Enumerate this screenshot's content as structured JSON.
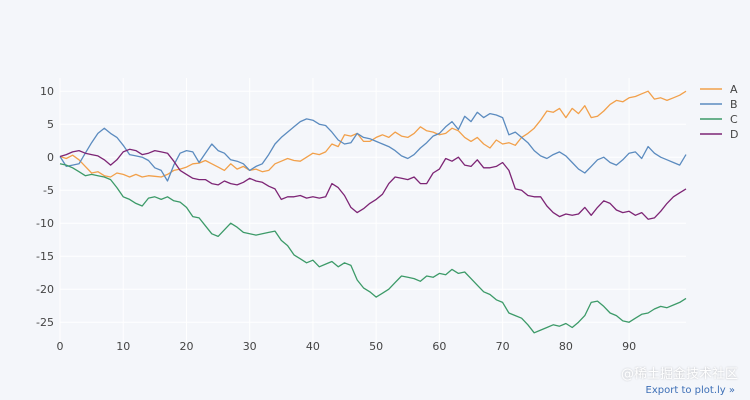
{
  "colors": {
    "background": "#f4f6fa",
    "grid": "#ffffff",
    "series": [
      "#f2a04a",
      "#5b8bbf",
      "#3c9a68",
      "#7d2575"
    ]
  },
  "export_label": "Export to plot.ly »",
  "watermark_text": "@稀土掘金技术社区",
  "chart_data": {
    "type": "line",
    "title": "",
    "xlabel": "",
    "ylabel": "",
    "xlim": [
      0,
      99
    ],
    "ylim": [
      -28,
      12
    ],
    "xticks": [
      0,
      10,
      20,
      30,
      40,
      50,
      60,
      70,
      80,
      90
    ],
    "yticks": [
      10,
      5,
      0,
      -5,
      -10,
      -15,
      -20,
      -25
    ],
    "grid": true,
    "legend_position": "top-right",
    "x": [
      0,
      1,
      2,
      3,
      4,
      5,
      6,
      7,
      8,
      9,
      10,
      11,
      12,
      13,
      14,
      15,
      16,
      17,
      18,
      19,
      20,
      21,
      22,
      23,
      24,
      25,
      26,
      27,
      28,
      29,
      30,
      31,
      32,
      33,
      34,
      35,
      36,
      37,
      38,
      39,
      40,
      41,
      42,
      43,
      44,
      45,
      46,
      47,
      48,
      49,
      50,
      51,
      52,
      53,
      54,
      55,
      56,
      57,
      58,
      59,
      60,
      61,
      62,
      63,
      64,
      65,
      66,
      67,
      68,
      69,
      70,
      71,
      72,
      73,
      74,
      75,
      76,
      77,
      78,
      79,
      80,
      81,
      82,
      83,
      84,
      85,
      86,
      87,
      88,
      89,
      90,
      91,
      92,
      93,
      94,
      95,
      96,
      97,
      98,
      99
    ],
    "series": [
      {
        "name": "A",
        "values": [
          0.1,
          -0.2,
          0.3,
          -0.4,
          -1.4,
          -2.4,
          -2.2,
          -2.8,
          -3.0,
          -2.4,
          -2.6,
          -3.0,
          -2.6,
          -3.0,
          -2.8,
          -2.9,
          -3.0,
          -2.6,
          -2.0,
          -1.8,
          -1.5,
          -1.0,
          -0.9,
          -0.5,
          -1.0,
          -1.5,
          -2.0,
          -1.0,
          -1.8,
          -1.4,
          -2.0,
          -1.8,
          -2.2,
          -2.0,
          -1.0,
          -0.6,
          -0.2,
          -0.5,
          -0.6,
          0.0,
          0.6,
          0.4,
          0.8,
          2.0,
          1.6,
          3.4,
          3.2,
          3.6,
          2.4,
          2.4,
          3.0,
          3.4,
          3.0,
          3.8,
          3.2,
          3.0,
          3.6,
          4.6,
          4.0,
          3.8,
          3.4,
          3.6,
          4.4,
          4.0,
          3.0,
          2.4,
          3.0,
          2.0,
          1.4,
          2.6,
          2.0,
          2.2,
          1.8,
          3.0,
          3.6,
          4.4,
          5.6,
          7.0,
          6.8,
          7.4,
          6.0,
          7.4,
          6.6,
          7.8,
          6.0,
          6.2,
          7.0,
          8.0,
          8.6,
          8.4,
          9.0,
          9.2,
          9.6,
          10.0,
          8.8,
          9.0,
          8.6,
          9.0,
          9.4,
          10.0
        ]
      },
      {
        "name": "B",
        "values": [
          0.1,
          -1.4,
          -1.2,
          -1.0,
          0.6,
          2.2,
          3.6,
          4.4,
          3.6,
          3.0,
          1.8,
          0.4,
          0.2,
          0.0,
          -0.5,
          -1.6,
          -2.0,
          -3.6,
          -1.2,
          0.6,
          1.0,
          0.8,
          -0.8,
          0.6,
          2.0,
          1.0,
          0.6,
          -0.4,
          -0.6,
          -1.0,
          -2.0,
          -1.4,
          -1.0,
          0.4,
          2.0,
          3.0,
          3.8,
          4.6,
          5.4,
          5.8,
          5.6,
          5.0,
          4.8,
          3.8,
          2.6,
          2.0,
          2.2,
          3.6,
          3.0,
          2.8,
          2.4,
          2.0,
          1.6,
          1.0,
          0.2,
          -0.2,
          0.4,
          1.4,
          2.2,
          3.2,
          3.6,
          4.6,
          5.4,
          4.2,
          6.2,
          5.4,
          6.8,
          6.0,
          6.6,
          6.4,
          6.0,
          3.4,
          3.8,
          3.0,
          2.2,
          1.0,
          0.2,
          -0.2,
          0.4,
          0.8,
          0.2,
          -0.8,
          -1.8,
          -2.4,
          -1.4,
          -0.4,
          0.0,
          -0.8,
          -1.2,
          -0.4,
          0.6,
          0.8,
          -0.2,
          1.6,
          0.6,
          0.0,
          -0.4,
          -0.8,
          -1.2,
          0.4
        ]
      },
      {
        "name": "C",
        "values": [
          -1.0,
          -1.2,
          -1.6,
          -2.2,
          -2.8,
          -2.6,
          -2.8,
          -3.0,
          -3.4,
          -4.6,
          -6.0,
          -6.4,
          -7.0,
          -7.4,
          -6.2,
          -6.0,
          -6.4,
          -6.0,
          -6.6,
          -6.8,
          -7.6,
          -9.0,
          -9.2,
          -10.4,
          -11.6,
          -12.0,
          -11.0,
          -10.0,
          -10.6,
          -11.4,
          -11.6,
          -11.8,
          -11.6,
          -11.4,
          -11.2,
          -12.6,
          -13.4,
          -14.8,
          -15.4,
          -16.0,
          -15.6,
          -16.6,
          -16.2,
          -15.8,
          -16.6,
          -16.0,
          -16.4,
          -18.6,
          -19.8,
          -20.4,
          -21.2,
          -20.6,
          -20.0,
          -19.0,
          -18.0,
          -18.2,
          -18.4,
          -18.8,
          -18.0,
          -18.2,
          -17.6,
          -17.8,
          -17.0,
          -17.6,
          -17.4,
          -18.4,
          -19.4,
          -20.4,
          -20.8,
          -21.6,
          -22.0,
          -23.6,
          -24.0,
          -24.4,
          -25.4,
          -26.6,
          -26.2,
          -25.8,
          -25.4,
          -25.6,
          -25.2,
          -25.8,
          -25.0,
          -24.0,
          -22.0,
          -21.8,
          -22.6,
          -23.6,
          -24.0,
          -24.8,
          -25.0,
          -24.4,
          -23.8,
          -23.6,
          -23.0,
          -22.6,
          -22.8,
          -22.4,
          -22.0,
          -21.4
        ]
      },
      {
        "name": "D",
        "values": [
          0.1,
          0.4,
          0.8,
          1.0,
          0.6,
          0.4,
          0.2,
          -0.4,
          -1.2,
          -0.4,
          0.8,
          1.2,
          1.0,
          0.4,
          0.6,
          1.0,
          0.8,
          0.6,
          -0.6,
          -2.0,
          -2.6,
          -3.2,
          -3.4,
          -3.4,
          -4.0,
          -4.2,
          -3.6,
          -4.0,
          -4.2,
          -3.8,
          -3.2,
          -3.6,
          -3.8,
          -4.4,
          -4.8,
          -6.4,
          -6.0,
          -6.0,
          -5.8,
          -6.2,
          -6.0,
          -6.2,
          -6.0,
          -4.0,
          -4.6,
          -5.8,
          -7.6,
          -8.4,
          -7.8,
          -7.0,
          -6.4,
          -5.6,
          -4.0,
          -3.0,
          -3.2,
          -3.4,
          -3.0,
          -4.0,
          -4.0,
          -2.4,
          -1.8,
          -0.2,
          -0.6,
          0.0,
          -1.2,
          -1.4,
          -0.4,
          -1.6,
          -1.6,
          -1.4,
          -0.8,
          -2.0,
          -4.8,
          -5.0,
          -5.8,
          -6.0,
          -6.0,
          -7.4,
          -8.4,
          -9.0,
          -8.6,
          -8.8,
          -8.6,
          -7.6,
          -8.8,
          -7.6,
          -6.6,
          -7.0,
          -8.0,
          -8.4,
          -8.2,
          -8.8,
          -8.4,
          -9.4,
          -9.2,
          -8.2,
          -7.0,
          -6.0,
          -5.4,
          -4.8
        ]
      }
    ]
  }
}
